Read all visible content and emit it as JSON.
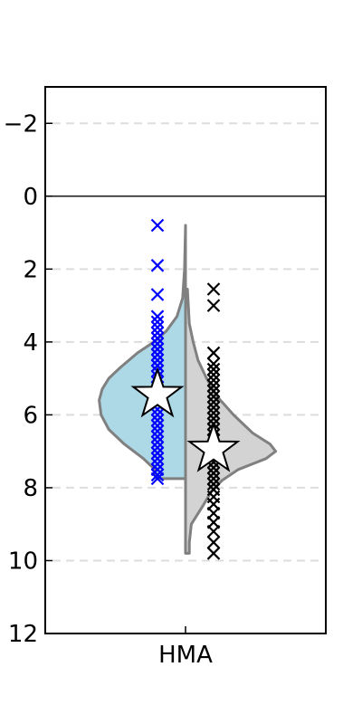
{
  "chart_data": {
    "type": "violin",
    "title": "",
    "xlabel": "",
    "ylabel": "",
    "categories": [
      "HMA"
    ],
    "ylim": [
      12,
      -3
    ],
    "yticks": [
      -2,
      0,
      2,
      4,
      6,
      8,
      10,
      12
    ],
    "ytick_labels": [
      "−2",
      "0",
      "2",
      "4",
      "6",
      "8",
      "10",
      "12"
    ],
    "grid": "horizontal dashed",
    "reference_line_y": 0,
    "series": [
      {
        "name": "left",
        "side": "left",
        "fill_color": "#add8e6",
        "marker_color": "#0000ff",
        "marker": "x",
        "mean": 5.45,
        "density_profile": [
          [
            0.8,
            0.0
          ],
          [
            2.0,
            0.01
          ],
          [
            2.8,
            0.03
          ],
          [
            3.3,
            0.09
          ],
          [
            3.7,
            0.2
          ],
          [
            4.0,
            0.33
          ],
          [
            4.3,
            0.5
          ],
          [
            4.7,
            0.68
          ],
          [
            5.0,
            0.8
          ],
          [
            5.3,
            0.87
          ],
          [
            5.6,
            0.9
          ],
          [
            6.0,
            0.88
          ],
          [
            6.4,
            0.8
          ],
          [
            6.8,
            0.64
          ],
          [
            7.2,
            0.44
          ],
          [
            7.5,
            0.32
          ],
          [
            7.75,
            0.3
          ]
        ],
        "points": [
          0.8,
          1.9,
          2.7,
          3.3,
          3.45,
          3.6,
          3.75,
          3.9,
          4.05,
          4.2,
          4.35,
          4.5,
          4.65,
          4.8,
          4.95,
          5.1,
          5.25,
          5.4,
          5.55,
          5.7,
          5.85,
          6.0,
          6.15,
          6.3,
          6.45,
          6.6,
          6.75,
          6.9,
          7.05,
          7.2,
          7.35,
          7.5,
          7.65,
          7.75
        ]
      },
      {
        "name": "right",
        "side": "right",
        "fill_color": "#d3d3d3",
        "marker_color": "#000000",
        "marker": "x",
        "mean": 6.95,
        "density_profile": [
          [
            2.55,
            0.02
          ],
          [
            3.5,
            0.04
          ],
          [
            4.0,
            0.08
          ],
          [
            4.5,
            0.13
          ],
          [
            5.0,
            0.22
          ],
          [
            5.5,
            0.33
          ],
          [
            6.0,
            0.5
          ],
          [
            6.5,
            0.7
          ],
          [
            6.8,
            0.88
          ],
          [
            7.0,
            0.94
          ],
          [
            7.2,
            0.84
          ],
          [
            7.5,
            0.55
          ],
          [
            7.8,
            0.38
          ],
          [
            8.1,
            0.27
          ],
          [
            8.5,
            0.18
          ],
          [
            9.0,
            0.06
          ],
          [
            9.5,
            0.04
          ],
          [
            9.8,
            0.04
          ]
        ],
        "points": [
          2.55,
          3.0,
          4.3,
          4.6,
          4.75,
          4.9,
          5.05,
          5.2,
          5.35,
          5.5,
          5.65,
          5.8,
          5.95,
          6.1,
          6.25,
          6.4,
          6.55,
          6.7,
          6.85,
          7.0,
          7.15,
          7.3,
          7.45,
          7.6,
          7.75,
          7.9,
          8.05,
          8.25,
          8.45,
          8.7,
          8.95,
          9.2,
          9.5,
          9.8
        ]
      }
    ]
  }
}
